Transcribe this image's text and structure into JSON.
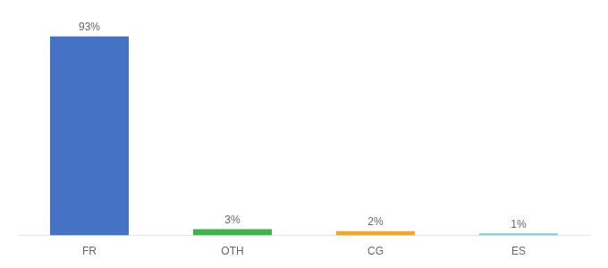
{
  "chart_data": {
    "type": "bar",
    "categories": [
      "FR",
      "OTH",
      "CG",
      "ES"
    ],
    "values": [
      93,
      3,
      2,
      1
    ],
    "value_labels": [
      "93%",
      "3%",
      "2%",
      "1%"
    ],
    "colors": [
      "#4472c4",
      "#3db54a",
      "#f5a623",
      "#7ec8e3"
    ],
    "ylim": [
      0,
      100
    ],
    "grid": false,
    "data_labels": true,
    "tick_labels": "x"
  }
}
